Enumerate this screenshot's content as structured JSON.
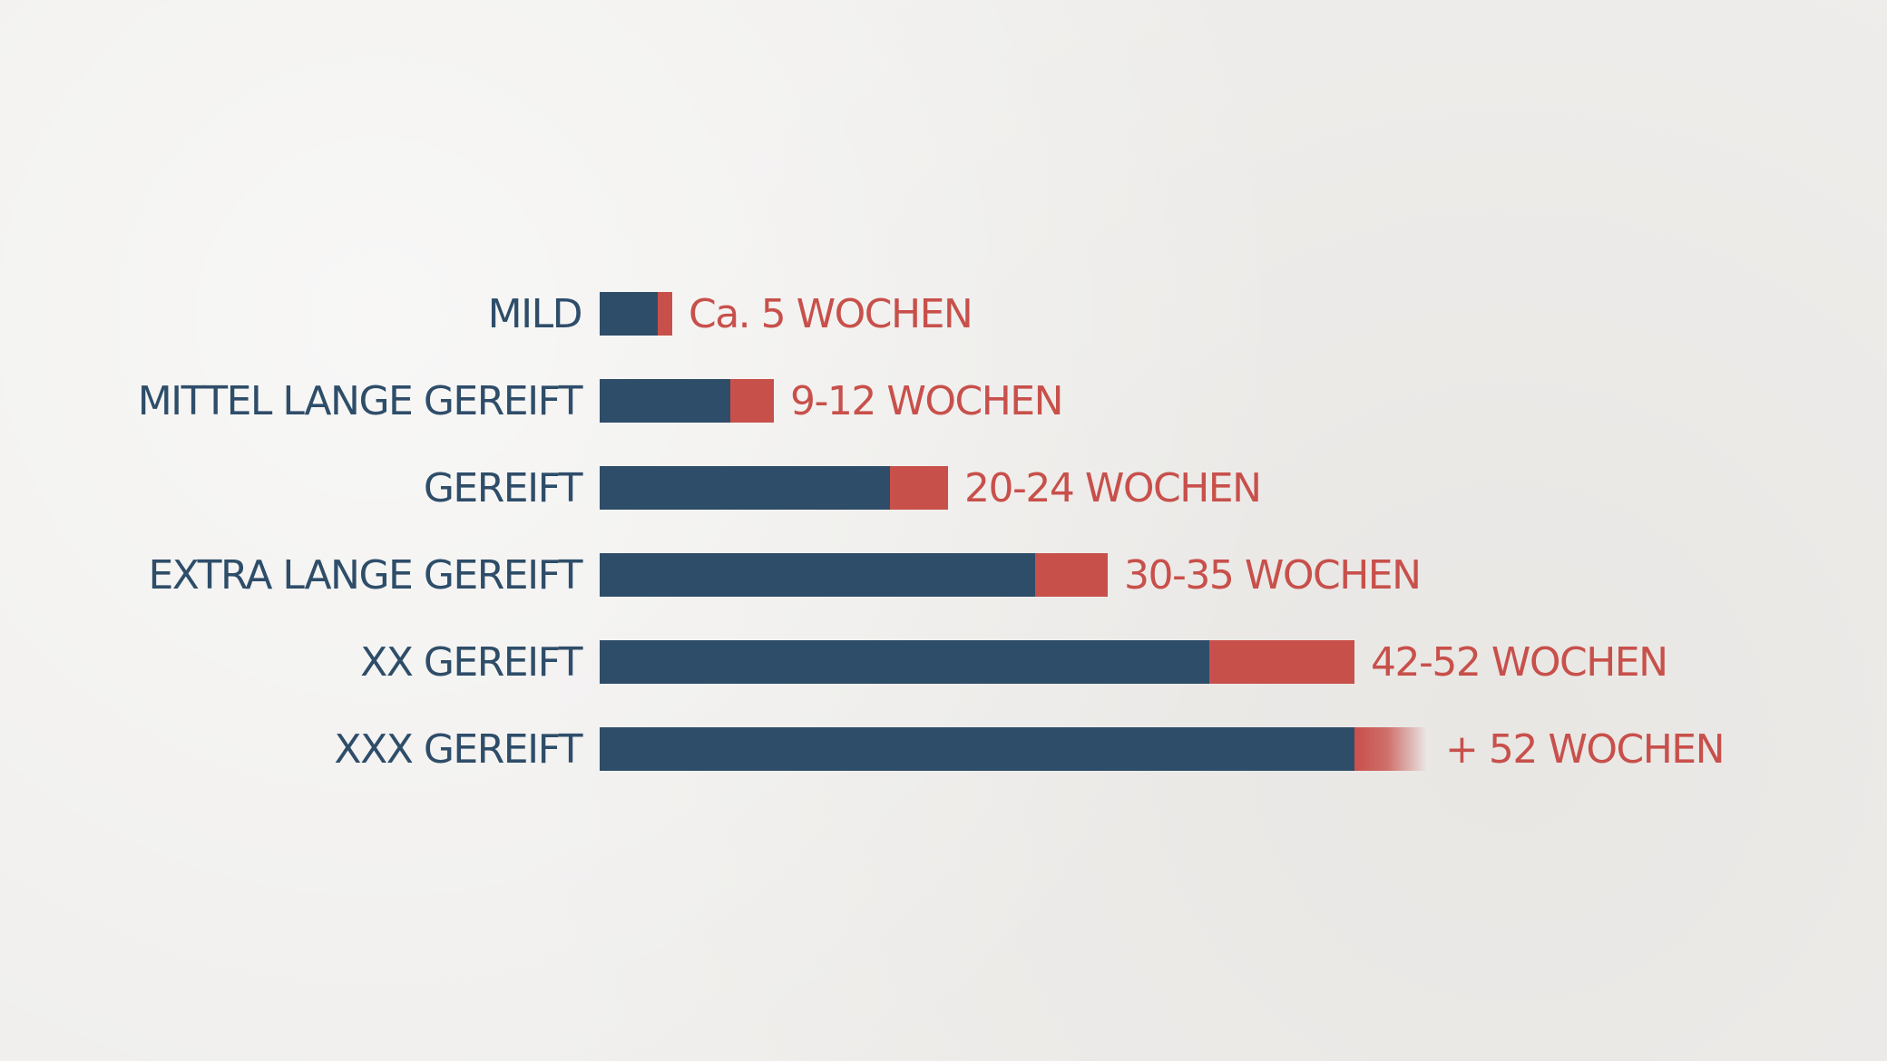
{
  "colors": {
    "primary": "#2e4d69",
    "accent": "#c8504b",
    "background": "#efeeec"
  },
  "chart_data": {
    "type": "bar",
    "orientation": "horizontal",
    "stacked": true,
    "unit": "WOCHEN",
    "categories": [
      "MILD",
      "MITTEL LANGE GEREIFT",
      "GEREIFT",
      "EXTRA LANGE GEREIFT",
      "XX GEREIFT",
      "XXX GEREIFT"
    ],
    "value_labels": [
      "Ca. 5 WOCHEN",
      "9-12 WOCHEN",
      "20-24 WOCHEN",
      "30-35 WOCHEN",
      "42-52 WOCHEN",
      "+ 52 WOCHEN"
    ],
    "series": [
      {
        "values": [
          4,
          9,
          20,
          30,
          42,
          52
        ]
      },
      {
        "values": [
          1,
          3,
          4,
          5,
          10,
          5
        ]
      }
    ],
    "open_ended_last": true,
    "xlim": [
      0,
      60
    ],
    "grid": false,
    "legend": "none",
    "title": "",
    "xlabel": "",
    "ylabel": ""
  }
}
